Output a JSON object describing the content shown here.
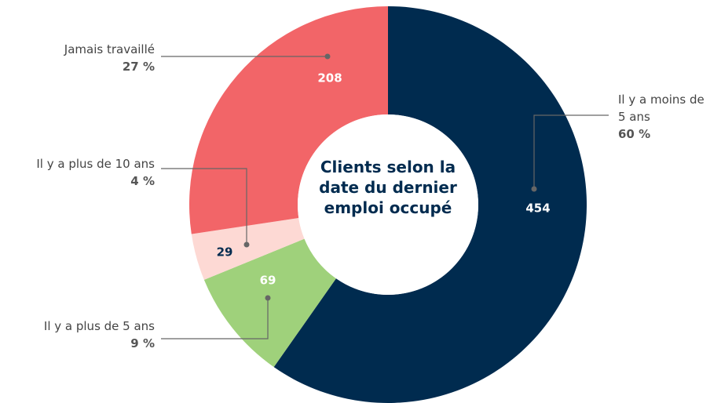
{
  "chart_data": {
    "type": "donut",
    "title": "Clients selon la date du dernier emploi occupé",
    "categories": [
      "Il y a moins de 5 ans",
      "Il y a plus de 5 ans",
      "Il y a plus de 10 ans",
      "Jamais travaillé"
    ],
    "values": [
      454,
      69,
      29,
      208
    ],
    "percent_labels": [
      "60 %",
      "9 %",
      "4 %",
      "27 %"
    ],
    "colors": [
      "#002b4f",
      "#9fd17b",
      "#fdd9d4",
      "#f26568"
    ]
  }
}
